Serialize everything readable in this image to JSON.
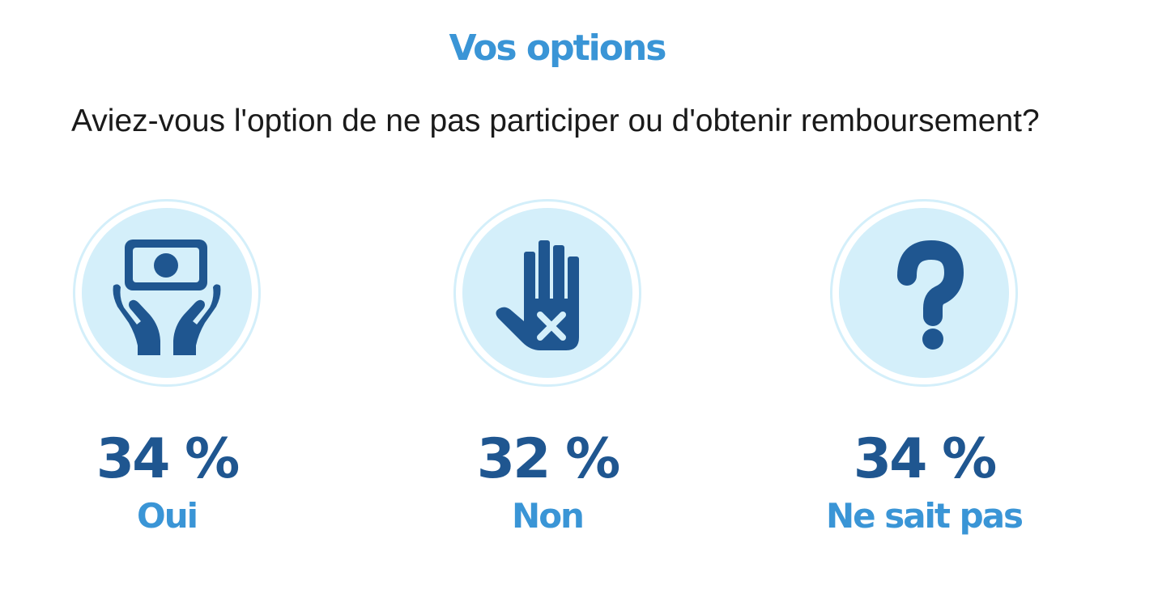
{
  "title": "Vos options",
  "question": "Aviez-vous l'option de ne pas participer ou d'obtenir remboursement?",
  "colors": {
    "title": "#3a95d6",
    "percent": "#1f5690",
    "label": "#3a95d6",
    "icon": "#1f5690",
    "circle": "#d4effa"
  },
  "options": [
    {
      "percent_text": "34 %",
      "label": "Oui",
      "icon": "money-hands-icon"
    },
    {
      "percent_text": "32 %",
      "label": "Non",
      "icon": "hand-x-icon"
    },
    {
      "percent_text": "34 %",
      "label": "Ne sait pas",
      "icon": "question-mark-icon"
    }
  ],
  "chart_data": {
    "type": "bar",
    "categories": [
      "Oui",
      "Non",
      "Ne sait pas"
    ],
    "values": [
      34,
      32,
      34
    ],
    "unit": "%",
    "title": "Vos options",
    "subtitle": "Aviez-vous l'option de ne pas participer ou d'obtenir remboursement?"
  }
}
